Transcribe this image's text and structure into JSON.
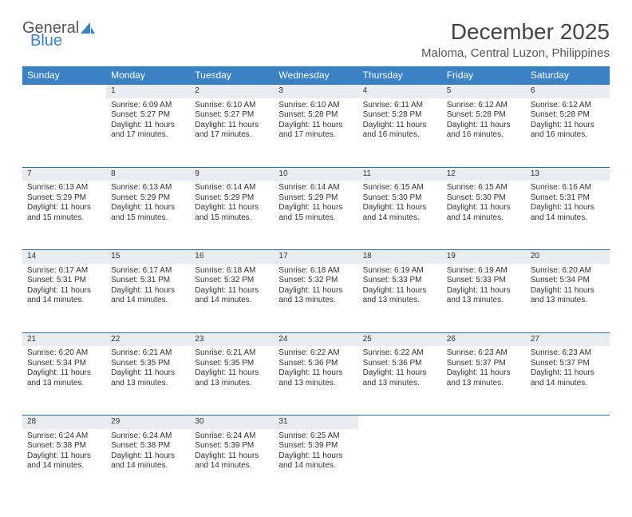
{
  "logo": {
    "text1": "General",
    "text2": "Blue",
    "accent": "#3b82c4",
    "gray": "#6b6b6b"
  },
  "title": "December 2025",
  "location": "Maloma, Central Luzon, Philippines",
  "header_bg": "#3b82c4",
  "header_fg": "#ffffff",
  "daynum_bg": "#e9edf1",
  "rule_color": "#2f6da3",
  "days": [
    "Sunday",
    "Monday",
    "Tuesday",
    "Wednesday",
    "Thursday",
    "Friday",
    "Saturday"
  ],
  "weeks": [
    [
      null,
      {
        "n": "1",
        "sr": "6:09 AM",
        "ss": "5:27 PM",
        "dl": "11 hours and 17 minutes."
      },
      {
        "n": "2",
        "sr": "6:10 AM",
        "ss": "5:27 PM",
        "dl": "11 hours and 17 minutes."
      },
      {
        "n": "3",
        "sr": "6:10 AM",
        "ss": "5:28 PM",
        "dl": "11 hours and 17 minutes."
      },
      {
        "n": "4",
        "sr": "6:11 AM",
        "ss": "5:28 PM",
        "dl": "11 hours and 16 minutes."
      },
      {
        "n": "5",
        "sr": "6:12 AM",
        "ss": "5:28 PM",
        "dl": "11 hours and 16 minutes."
      },
      {
        "n": "6",
        "sr": "6:12 AM",
        "ss": "5:28 PM",
        "dl": "11 hours and 16 minutes."
      }
    ],
    [
      {
        "n": "7",
        "sr": "6:13 AM",
        "ss": "5:29 PM",
        "dl": "11 hours and 15 minutes."
      },
      {
        "n": "8",
        "sr": "6:13 AM",
        "ss": "5:29 PM",
        "dl": "11 hours and 15 minutes."
      },
      {
        "n": "9",
        "sr": "6:14 AM",
        "ss": "5:29 PM",
        "dl": "11 hours and 15 minutes."
      },
      {
        "n": "10",
        "sr": "6:14 AM",
        "ss": "5:29 PM",
        "dl": "11 hours and 15 minutes."
      },
      {
        "n": "11",
        "sr": "6:15 AM",
        "ss": "5:30 PM",
        "dl": "11 hours and 14 minutes."
      },
      {
        "n": "12",
        "sr": "6:15 AM",
        "ss": "5:30 PM",
        "dl": "11 hours and 14 minutes."
      },
      {
        "n": "13",
        "sr": "6:16 AM",
        "ss": "5:31 PM",
        "dl": "11 hours and 14 minutes."
      }
    ],
    [
      {
        "n": "14",
        "sr": "6:17 AM",
        "ss": "5:31 PM",
        "dl": "11 hours and 14 minutes."
      },
      {
        "n": "15",
        "sr": "6:17 AM",
        "ss": "5:31 PM",
        "dl": "11 hours and 14 minutes."
      },
      {
        "n": "16",
        "sr": "6:18 AM",
        "ss": "5:32 PM",
        "dl": "11 hours and 14 minutes."
      },
      {
        "n": "17",
        "sr": "6:18 AM",
        "ss": "5:32 PM",
        "dl": "11 hours and 13 minutes."
      },
      {
        "n": "18",
        "sr": "6:19 AM",
        "ss": "5:33 PM",
        "dl": "11 hours and 13 minutes."
      },
      {
        "n": "19",
        "sr": "6:19 AM",
        "ss": "5:33 PM",
        "dl": "11 hours and 13 minutes."
      },
      {
        "n": "20",
        "sr": "6:20 AM",
        "ss": "5:34 PM",
        "dl": "11 hours and 13 minutes."
      }
    ],
    [
      {
        "n": "21",
        "sr": "6:20 AM",
        "ss": "5:34 PM",
        "dl": "11 hours and 13 minutes."
      },
      {
        "n": "22",
        "sr": "6:21 AM",
        "ss": "5:35 PM",
        "dl": "11 hours and 13 minutes."
      },
      {
        "n": "23",
        "sr": "6:21 AM",
        "ss": "5:35 PM",
        "dl": "11 hours and 13 minutes."
      },
      {
        "n": "24",
        "sr": "6:22 AM",
        "ss": "5:36 PM",
        "dl": "11 hours and 13 minutes."
      },
      {
        "n": "25",
        "sr": "6:22 AM",
        "ss": "5:36 PM",
        "dl": "11 hours and 13 minutes."
      },
      {
        "n": "26",
        "sr": "6:23 AM",
        "ss": "5:37 PM",
        "dl": "11 hours and 13 minutes."
      },
      {
        "n": "27",
        "sr": "6:23 AM",
        "ss": "5:37 PM",
        "dl": "11 hours and 14 minutes."
      }
    ],
    [
      {
        "n": "28",
        "sr": "6:24 AM",
        "ss": "5:38 PM",
        "dl": "11 hours and 14 minutes."
      },
      {
        "n": "29",
        "sr": "6:24 AM",
        "ss": "5:38 PM",
        "dl": "11 hours and 14 minutes."
      },
      {
        "n": "30",
        "sr": "6:24 AM",
        "ss": "5:39 PM",
        "dl": "11 hours and 14 minutes."
      },
      {
        "n": "31",
        "sr": "6:25 AM",
        "ss": "5:39 PM",
        "dl": "11 hours and 14 minutes."
      },
      null,
      null,
      null
    ]
  ],
  "labels": {
    "sunrise": "Sunrise:",
    "sunset": "Sunset:",
    "daylight": "Daylight:"
  }
}
